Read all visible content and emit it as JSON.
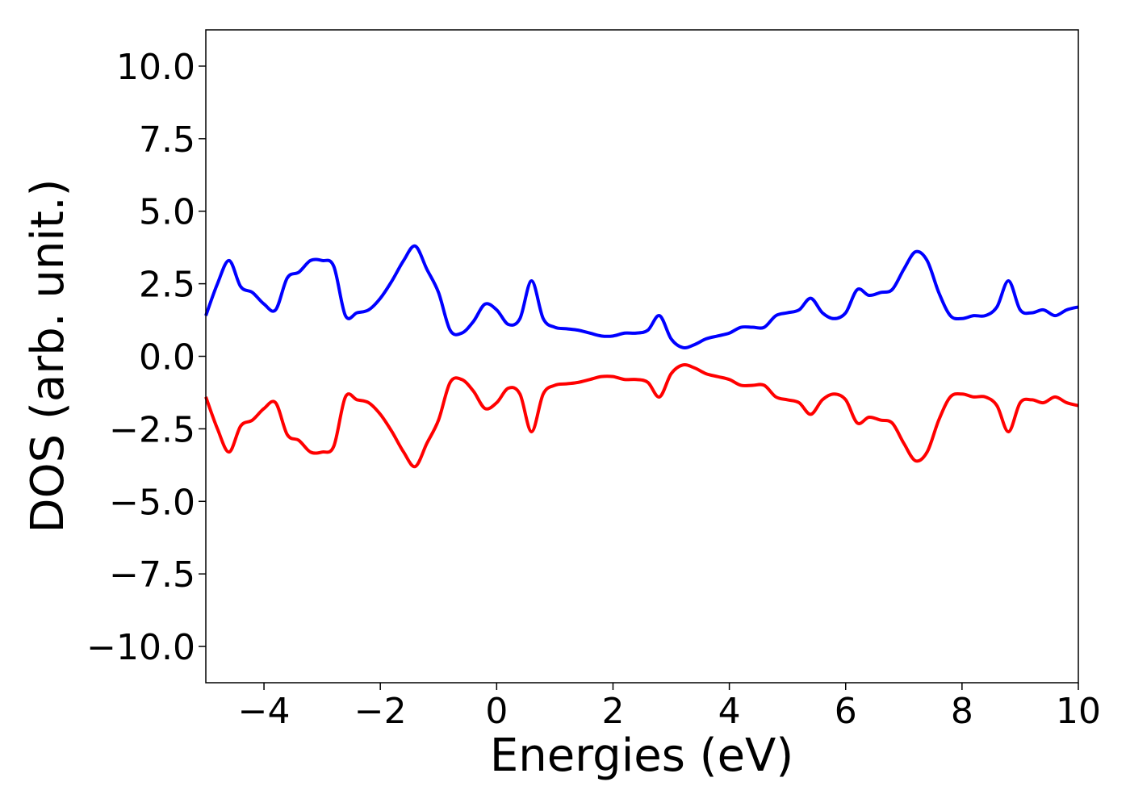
{
  "chart_data": {
    "type": "line",
    "title": "",
    "xlabel": "Energies (eV)",
    "ylabel": "DOS (arb. unit.)",
    "xlim": [
      -5,
      10
    ],
    "ylim": [
      -11.25,
      11.25
    ],
    "xticks": [
      -4,
      -2,
      0,
      2,
      4,
      6,
      8,
      10
    ],
    "xtick_labels": [
      "−4",
      "−2",
      "0",
      "2",
      "4",
      "6",
      "8",
      "10"
    ],
    "yticks": [
      10,
      7.5,
      5,
      2.5,
      0,
      -2.5,
      -5,
      -7.5,
      -10
    ],
    "ytick_labels": [
      "10.0",
      "7.5",
      "5.0",
      "2.5",
      "0.0",
      "−2.5",
      "−5.0",
      "−7.5",
      "−10.0"
    ],
    "grid": false,
    "series": [
      {
        "color": "#0000ff",
        "x": [
          -5.0,
          -4.8,
          -4.6,
          -4.4,
          -4.2,
          -4.0,
          -3.8,
          -3.6,
          -3.4,
          -3.2,
          -3.0,
          -2.8,
          -2.6,
          -2.4,
          -2.2,
          -2.0,
          -1.8,
          -1.6,
          -1.4,
          -1.2,
          -1.0,
          -0.8,
          -0.6,
          -0.4,
          -0.2,
          0.0,
          0.2,
          0.4,
          0.6,
          0.8,
          1.0,
          1.2,
          1.4,
          1.6,
          1.8,
          2.0,
          2.2,
          2.4,
          2.6,
          2.8,
          3.0,
          3.2,
          3.4,
          3.6,
          3.8,
          4.0,
          4.2,
          4.4,
          4.6,
          4.8,
          5.0,
          5.2,
          5.4,
          5.6,
          5.8,
          6.0,
          6.2,
          6.4,
          6.6,
          6.8,
          7.0,
          7.2,
          7.4,
          7.6,
          7.8,
          8.0,
          8.2,
          8.4,
          8.6,
          8.8,
          9.0,
          9.2,
          9.4,
          9.6,
          9.8,
          10.0
        ],
        "y": [
          1.4,
          2.5,
          3.3,
          2.4,
          2.2,
          1.8,
          1.6,
          2.7,
          2.9,
          3.3,
          3.3,
          3.1,
          1.4,
          1.5,
          1.6,
          2.0,
          2.6,
          3.3,
          3.8,
          3.0,
          2.2,
          0.9,
          0.8,
          1.2,
          1.8,
          1.6,
          1.1,
          1.3,
          2.6,
          1.3,
          1.0,
          0.95,
          0.9,
          0.8,
          0.7,
          0.7,
          0.8,
          0.8,
          0.9,
          1.4,
          0.6,
          0.3,
          0.4,
          0.6,
          0.7,
          0.8,
          1.0,
          1.0,
          1.0,
          1.4,
          1.5,
          1.6,
          2.0,
          1.5,
          1.3,
          1.5,
          2.3,
          2.1,
          2.2,
          2.3,
          3.0,
          3.6,
          3.3,
          2.2,
          1.4,
          1.3,
          1.4,
          1.4,
          1.7,
          2.6,
          1.6,
          1.5,
          1.6,
          1.4,
          1.6,
          1.7
        ]
      },
      {
        "color": "#ff0000",
        "x": [
          -5.0,
          -4.8,
          -4.6,
          -4.4,
          -4.2,
          -4.0,
          -3.8,
          -3.6,
          -3.4,
          -3.2,
          -3.0,
          -2.8,
          -2.6,
          -2.4,
          -2.2,
          -2.0,
          -1.8,
          -1.6,
          -1.4,
          -1.2,
          -1.0,
          -0.8,
          -0.6,
          -0.4,
          -0.2,
          0.0,
          0.2,
          0.4,
          0.6,
          0.8,
          1.0,
          1.2,
          1.4,
          1.6,
          1.8,
          2.0,
          2.2,
          2.4,
          2.6,
          2.8,
          3.0,
          3.2,
          3.4,
          3.6,
          3.8,
          4.0,
          4.2,
          4.4,
          4.6,
          4.8,
          5.0,
          5.2,
          5.4,
          5.6,
          5.8,
          6.0,
          6.2,
          6.4,
          6.6,
          6.8,
          7.0,
          7.2,
          7.4,
          7.6,
          7.8,
          8.0,
          8.2,
          8.4,
          8.6,
          8.8,
          9.0,
          9.2,
          9.4,
          9.6,
          9.8,
          10.0
        ],
        "y": [
          -1.4,
          -2.5,
          -3.3,
          -2.4,
          -2.2,
          -1.8,
          -1.6,
          -2.7,
          -2.9,
          -3.3,
          -3.3,
          -3.1,
          -1.4,
          -1.5,
          -1.6,
          -2.0,
          -2.6,
          -3.3,
          -3.8,
          -3.0,
          -2.2,
          -0.9,
          -0.8,
          -1.2,
          -1.8,
          -1.6,
          -1.1,
          -1.3,
          -2.6,
          -1.3,
          -1.0,
          -0.95,
          -0.9,
          -0.8,
          -0.7,
          -0.7,
          -0.8,
          -0.8,
          -0.9,
          -1.4,
          -0.6,
          -0.3,
          -0.4,
          -0.6,
          -0.7,
          -0.8,
          -1.0,
          -1.0,
          -1.0,
          -1.4,
          -1.5,
          -1.6,
          -2.0,
          -1.5,
          -1.3,
          -1.5,
          -2.3,
          -2.1,
          -2.2,
          -2.3,
          -3.0,
          -3.6,
          -3.3,
          -2.2,
          -1.4,
          -1.3,
          -1.4,
          -1.4,
          -1.7,
          -2.6,
          -1.6,
          -1.5,
          -1.6,
          -1.4,
          -1.6,
          -1.7
        ]
      }
    ]
  }
}
